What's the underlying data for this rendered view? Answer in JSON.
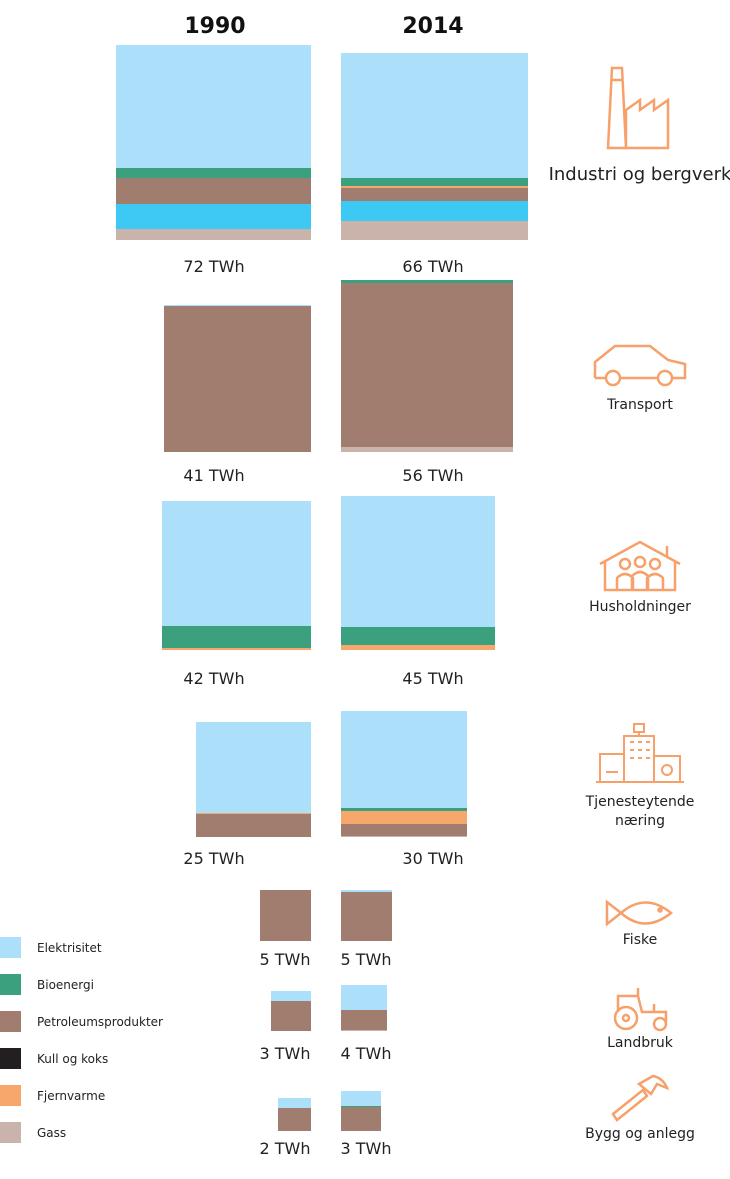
{
  "chart_data": {
    "type": "proportional-stacked-squares",
    "years": [
      "1990",
      "2014"
    ],
    "unit": "TWh",
    "legend": [
      {
        "name": "Elektrisitet",
        "color": "#abdffa"
      },
      {
        "name": "Bioenergi",
        "color": "#3aa07e"
      },
      {
        "name": "Petroleumsprodukter",
        "color": "#a17d70"
      },
      {
        "name": "Kull og koks",
        "color": "#231f20"
      },
      {
        "name": "Fjernvarme",
        "color": "#f7a76c"
      },
      {
        "name": "Gass",
        "color": "#cab3aa"
      }
    ],
    "extra_colors": {
      "unlabeled": "#3ec8f4"
    },
    "sectors": [
      {
        "name": "Industri og bergverk",
        "icon": "factory-icon",
        "values": [
          {
            "total": 72,
            "label": "72 TWh",
            "shares": [
              [
                "Elektrisitet",
                0.63
              ],
              [
                "Bioenergi",
                0.056
              ],
              [
                "Petroleumsprodukter",
                0.13
              ],
              [
                "unlabeled",
                0.13
              ],
              [
                "Gass",
                0.056
              ]
            ]
          },
          {
            "total": 66,
            "label": "66 TWh",
            "shares": [
              [
                "Elektrisitet",
                0.67
              ],
              [
                "Bioenergi",
                0.04
              ],
              [
                "Fjernvarme",
                0.01
              ],
              [
                "Petroleumsprodukter",
                0.07
              ],
              [
                "unlabeled",
                0.11
              ],
              [
                "Gass",
                0.1
              ]
            ]
          }
        ]
      },
      {
        "name": "Transport",
        "icon": "car-icon",
        "values": [
          {
            "total": 41,
            "label": "41 TWh",
            "shares": [
              [
                "Elektrisitet",
                0.01
              ],
              [
                "Petroleumsprodukter",
                0.99
              ]
            ]
          },
          {
            "total": 56,
            "label": "56 TWh",
            "shares": [
              [
                "Bioenergi",
                0.02
              ],
              [
                "Petroleumsprodukter",
                0.95
              ],
              [
                "Gass",
                0.03
              ]
            ]
          }
        ]
      },
      {
        "name": "Husholdninger",
        "icon": "house-family-icon",
        "values": [
          {
            "total": 42,
            "label": "42 TWh",
            "shares": [
              [
                "Elektrisitet",
                0.84
              ],
              [
                "Bioenergi",
                0.15
              ],
              [
                "Fjernvarme",
                0.01
              ]
            ]
          },
          {
            "total": 45,
            "label": "45 TWh",
            "shares": [
              [
                "Elektrisitet",
                0.85
              ],
              [
                "Bioenergi",
                0.12
              ],
              [
                "Fjernvarme",
                0.03
              ]
            ]
          }
        ]
      },
      {
        "name": "Tjenesteytende næring",
        "icon": "buildings-icon",
        "values": [
          {
            "total": 25,
            "label": "25 TWh",
            "shares": [
              [
                "Elektrisitet",
                0.79
              ],
              [
                "Fjernvarme",
                0.01
              ],
              [
                "Petroleumsprodukter",
                0.2
              ]
            ]
          },
          {
            "total": 30,
            "label": "30 TWh",
            "shares": [
              [
                "Elektrisitet",
                0.77
              ],
              [
                "Bioenergi",
                0.02
              ],
              [
                "Fjernvarme",
                0.11
              ],
              [
                "Petroleumsprodukter",
                0.09
              ],
              [
                "Gass",
                0.01
              ]
            ]
          }
        ]
      },
      {
        "name": "Fiske",
        "icon": "fish-icon",
        "values": [
          {
            "total": 5,
            "label": "5 TWh",
            "shares": [
              [
                "Petroleumsprodukter",
                1.0
              ]
            ]
          },
          {
            "total": 5,
            "label": "5 TWh",
            "shares": [
              [
                "Elektrisitet",
                0.04
              ],
              [
                "Petroleumsprodukter",
                0.96
              ]
            ]
          }
        ]
      },
      {
        "name": "Landbruk",
        "icon": "tractor-icon",
        "values": [
          {
            "total": 3,
            "label": "3 TWh",
            "shares": [
              [
                "Elektrisitet",
                0.25
              ],
              [
                "Petroleumsprodukter",
                0.75
              ]
            ]
          },
          {
            "total": 4,
            "label": "4 TWh",
            "shares": [
              [
                "Elektrisitet",
                0.55
              ],
              [
                "Petroleumsprodukter",
                0.43
              ],
              [
                "Gass",
                0.02
              ]
            ]
          }
        ]
      },
      {
        "name": "Bygg og anlegg",
        "icon": "hammer-icon",
        "values": [
          {
            "total": 2,
            "label": "2 TWh",
            "shares": [
              [
                "Elektrisitet",
                0.3
              ],
              [
                "Petroleumsprodukter",
                0.7
              ]
            ]
          },
          {
            "total": 3,
            "label": "3 TWh",
            "shares": [
              [
                "Elektrisitet",
                0.37
              ],
              [
                "Bioenergi",
                0.02
              ],
              [
                "Petroleumsprodukter",
                0.61
              ]
            ]
          }
        ]
      }
    ],
    "icon_color": "#f7a06a"
  }
}
